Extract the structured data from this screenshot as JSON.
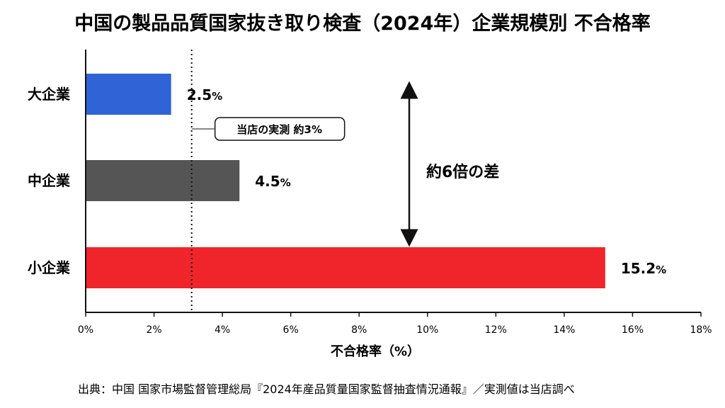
{
  "chart_data": {
    "type": "bar",
    "orientation": "horizontal",
    "title": "中国の製品品質国家抜き取り検査（2024年）企業規模別 不合格率",
    "categories": [
      "大企業",
      "中企業",
      "小企業"
    ],
    "values": [
      2.5,
      4.5,
      15.2
    ],
    "value_labels": [
      "2.5%",
      "4.5%",
      "15.2%"
    ],
    "colors": [
      "#2f63d6",
      "#555555",
      "#f0242b"
    ],
    "xlim": [
      0,
      18
    ],
    "xticks": [
      0,
      2,
      4,
      6,
      8,
      10,
      12,
      14,
      16,
      18
    ],
    "xtick_labels": [
      "0%",
      "2%",
      "4%",
      "6%",
      "8%",
      "10%",
      "12%",
      "14%",
      "16%",
      "18%"
    ],
    "xlabel": "不合格率（%）",
    "grid": false,
    "reference_line": {
      "value": 3.1,
      "label": "当店の実測 約3%"
    },
    "gap_annotation": "約6倍の差",
    "source": "出典：中国 国家市場監督管理総局『2024年産品質量国家監督抽査情況通報』／実測値は当店調べ"
  }
}
